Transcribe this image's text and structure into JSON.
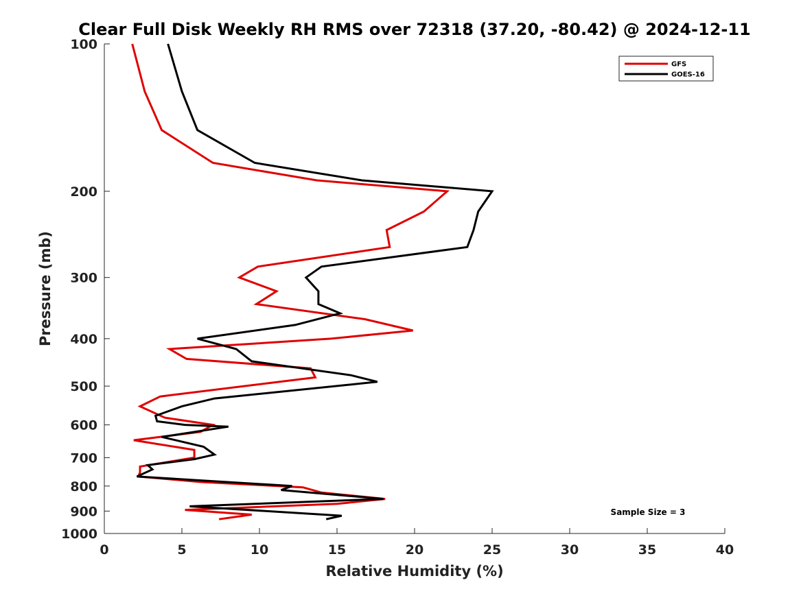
{
  "chart_data": {
    "type": "line",
    "title": "Clear Full Disk Weekly RH RMS over 72318 (37.20, -80.42) @ 2024-12-11",
    "xlabel": "Relative Humidity (%)",
    "ylabel": "Pressure (mb)",
    "xlim": [
      0,
      40
    ],
    "ylim": [
      100,
      1000
    ],
    "y_scale": "log",
    "y_reversed": true,
    "x_ticks": [
      0,
      5,
      10,
      15,
      20,
      25,
      30,
      35,
      40
    ],
    "y_ticks": [
      100,
      200,
      300,
      400,
      500,
      600,
      700,
      800,
      900,
      1000
    ],
    "grid": false,
    "legend_position": "top-right",
    "annotation": "Sample Size = 3",
    "series": [
      {
        "name": "GFS",
        "color": "#e00000",
        "points": [
          [
            1.8,
            100
          ],
          [
            2.6,
            125
          ],
          [
            3.7,
            150
          ],
          [
            7.0,
            175
          ],
          [
            13.7,
            190
          ],
          [
            22.1,
            200
          ],
          [
            20.6,
            220
          ],
          [
            18.2,
            240
          ],
          [
            18.4,
            260
          ],
          [
            9.9,
            285
          ],
          [
            8.7,
            300
          ],
          [
            11.1,
            320
          ],
          [
            9.8,
            340
          ],
          [
            16.8,
            365
          ],
          [
            19.9,
            385
          ],
          [
            14.6,
            400
          ],
          [
            4.2,
            420
          ],
          [
            5.3,
            440
          ],
          [
            13.3,
            460
          ],
          [
            13.6,
            480
          ],
          [
            3.6,
            525
          ],
          [
            2.3,
            550
          ],
          [
            3.9,
            580
          ],
          [
            7.0,
            600
          ],
          [
            6.2,
            620
          ],
          [
            1.9,
            645
          ],
          [
            5.8,
            675
          ],
          [
            5.8,
            700
          ],
          [
            2.3,
            730
          ],
          [
            2.3,
            750
          ],
          [
            2.2,
            765
          ],
          [
            6.2,
            785
          ],
          [
            12.8,
            805
          ],
          [
            14.0,
            825
          ],
          [
            18.1,
            850
          ],
          [
            15.0,
            870
          ],
          [
            5.2,
            895
          ],
          [
            9.5,
            915
          ],
          [
            7.4,
            935
          ]
        ]
      },
      {
        "name": "GOES-16",
        "color": "#000000",
        "points": [
          [
            4.1,
            100
          ],
          [
            5.0,
            125
          ],
          [
            6.0,
            150
          ],
          [
            9.7,
            175
          ],
          [
            16.6,
            190
          ],
          [
            25.0,
            200
          ],
          [
            24.1,
            220
          ],
          [
            23.8,
            240
          ],
          [
            23.4,
            260
          ],
          [
            14.0,
            285
          ],
          [
            13.0,
            300
          ],
          [
            13.8,
            320
          ],
          [
            13.8,
            340
          ],
          [
            15.2,
            355
          ],
          [
            12.3,
            375
          ],
          [
            6.0,
            400
          ],
          [
            8.5,
            420
          ],
          [
            9.5,
            445
          ],
          [
            15.9,
            475
          ],
          [
            17.6,
            490
          ],
          [
            7.1,
            530
          ],
          [
            5.0,
            550
          ],
          [
            3.3,
            575
          ],
          [
            3.4,
            590
          ],
          [
            5.2,
            600
          ],
          [
            8.0,
            605
          ],
          [
            3.7,
            635
          ],
          [
            6.4,
            665
          ],
          [
            7.1,
            690
          ],
          [
            5.8,
            705
          ],
          [
            2.8,
            725
          ],
          [
            3.1,
            740
          ],
          [
            2.1,
            765
          ],
          [
            12.1,
            800
          ],
          [
            11.4,
            815
          ],
          [
            18.0,
            850
          ],
          [
            5.5,
            880
          ],
          [
            15.3,
            920
          ],
          [
            14.3,
            935
          ]
        ]
      }
    ]
  }
}
